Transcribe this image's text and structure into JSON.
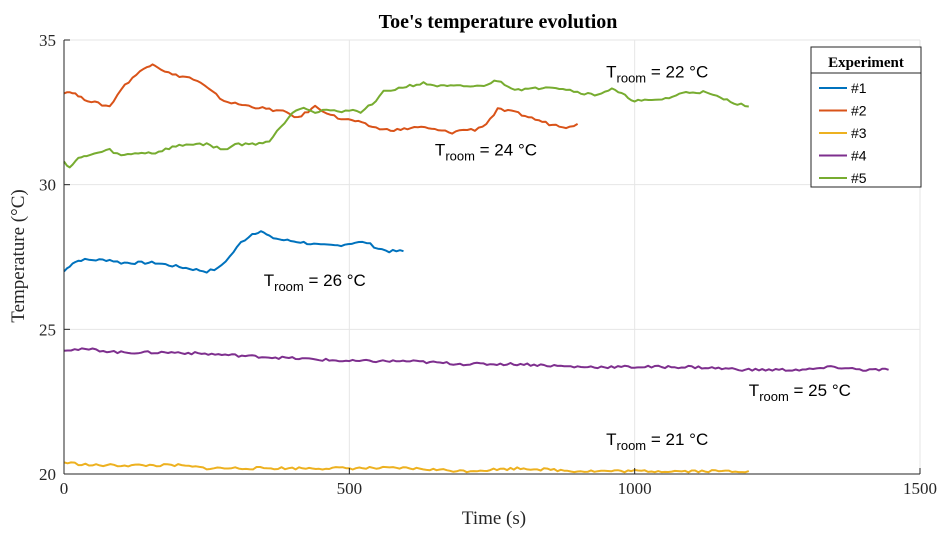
{
  "chart_data": {
    "type": "line",
    "title": "Toe's temperature evolution",
    "xlabel": "Time (s)",
    "ylabel": "Temperature (°C)",
    "xlim": [
      0,
      1500
    ],
    "ylim": [
      20,
      35
    ],
    "xticks": [
      0,
      500,
      1000,
      1500
    ],
    "yticks": [
      20,
      25,
      30,
      35
    ],
    "grid": true,
    "legend": {
      "title": "Experiment",
      "position": "top-right"
    },
    "series": [
      {
        "name": "#1",
        "color": "#0072BD",
        "x": [
          0,
          15,
          30,
          50,
          80,
          100,
          130,
          160,
          190,
          220,
          250,
          270,
          290,
          310,
          330,
          345,
          360,
          380,
          420,
          450,
          480,
          510,
          530,
          550,
          570,
          595
        ],
        "y": [
          27.0,
          27.3,
          27.4,
          27.4,
          27.4,
          27.3,
          27.3,
          27.3,
          27.2,
          27.1,
          27.0,
          27.1,
          27.5,
          28.0,
          28.3,
          28.4,
          28.2,
          28.1,
          28.0,
          27.9,
          27.9,
          28.0,
          28.0,
          27.8,
          27.7,
          27.7
        ]
      },
      {
        "name": "#2",
        "color": "#D95319",
        "x": [
          0,
          15,
          30,
          60,
          80,
          100,
          120,
          140,
          155,
          170,
          190,
          220,
          240,
          260,
          280,
          300,
          330,
          360,
          390,
          410,
          440,
          460,
          480,
          510,
          540,
          560,
          590,
          620,
          650,
          680,
          700,
          720,
          740,
          760,
          790,
          820,
          850,
          880,
          900
        ],
        "y": [
          33.2,
          33.2,
          33.0,
          32.8,
          32.7,
          33.3,
          33.7,
          34.0,
          34.2,
          34.0,
          33.8,
          33.7,
          33.5,
          33.2,
          32.9,
          32.8,
          32.7,
          32.6,
          32.5,
          32.3,
          32.7,
          32.5,
          32.3,
          32.2,
          32.0,
          31.9,
          31.9,
          32.0,
          31.9,
          31.8,
          31.9,
          31.9,
          32.1,
          32.6,
          32.5,
          32.3,
          32.1,
          32.0,
          32.1
        ]
      },
      {
        "name": "#3",
        "color": "#EDB120",
        "x": [
          0,
          50,
          100,
          150,
          200,
          250,
          300,
          350,
          400,
          500,
          600,
          700,
          800,
          900,
          1000,
          1100,
          1200
        ],
        "y": [
          20.4,
          20.3,
          20.3,
          20.3,
          20.3,
          20.2,
          20.2,
          20.2,
          20.2,
          20.2,
          20.2,
          20.1,
          20.2,
          20.1,
          20.1,
          20.1,
          20.1
        ]
      },
      {
        "name": "#4",
        "color": "#7E2F8E",
        "x": [
          0,
          50,
          100,
          200,
          300,
          400,
          500,
          600,
          700,
          800,
          900,
          1000,
          1100,
          1200,
          1300,
          1350,
          1400,
          1445
        ],
        "y": [
          24.3,
          24.3,
          24.2,
          24.2,
          24.1,
          24.0,
          23.9,
          23.9,
          23.8,
          23.8,
          23.7,
          23.7,
          23.7,
          23.6,
          23.6,
          23.7,
          23.6,
          23.6
        ]
      },
      {
        "name": "#5",
        "color": "#77AC30",
        "x": [
          0,
          10,
          25,
          40,
          60,
          80,
          100,
          130,
          160,
          190,
          220,
          250,
          280,
          300,
          330,
          360,
          380,
          400,
          420,
          440,
          460,
          480,
          500,
          520,
          540,
          560,
          580,
          600,
          630,
          660,
          700,
          730,
          760,
          790,
          820,
          850,
          880,
          900,
          930,
          960,
          1000,
          1030,
          1060,
          1090,
          1120,
          1150,
          1180,
          1200
        ],
        "y": [
          30.8,
          30.6,
          30.9,
          31.0,
          31.1,
          31.2,
          31.0,
          31.1,
          31.1,
          31.3,
          31.4,
          31.4,
          31.2,
          31.4,
          31.4,
          31.5,
          32.0,
          32.5,
          32.7,
          32.5,
          32.6,
          32.5,
          32.6,
          32.5,
          32.8,
          33.2,
          33.3,
          33.4,
          33.5,
          33.4,
          33.4,
          33.4,
          33.6,
          33.3,
          33.3,
          33.4,
          33.3,
          33.2,
          33.1,
          33.3,
          32.9,
          32.9,
          33.0,
          33.2,
          33.2,
          33.0,
          32.8,
          32.7
        ]
      }
    ],
    "annotations": [
      {
        "main": "T",
        "sub": "room",
        "rest": " = 22 °C",
        "x": 950,
        "y": 33.7
      },
      {
        "main": "T",
        "sub": "room",
        "rest": " = 24 °C",
        "x": 650,
        "y": 31.0
      },
      {
        "main": "T",
        "sub": "room",
        "rest": " = 26 °C",
        "x": 350,
        "y": 26.5
      },
      {
        "main": "T",
        "sub": "room",
        "rest": " = 25 °C",
        "x": 1200,
        "y": 22.7
      },
      {
        "main": "T",
        "sub": "room",
        "rest": " = 21 °C",
        "x": 950,
        "y": 21.0
      }
    ]
  }
}
